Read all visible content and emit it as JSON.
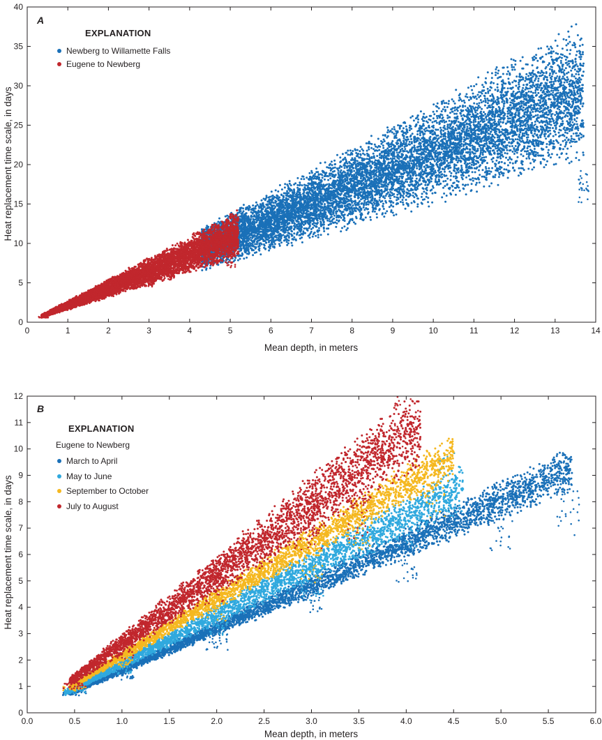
{
  "figure": {
    "panels": [
      "A",
      "B"
    ]
  },
  "chart_data": [
    {
      "type": "scatter",
      "panel_label": "A",
      "xlabel": "Mean depth, in meters",
      "ylabel": "Heat replacement time scale, in days",
      "xlim": [
        0,
        14
      ],
      "ylim": [
        0,
        40
      ],
      "xticks": [
        0,
        1,
        2,
        3,
        4,
        5,
        6,
        7,
        8,
        9,
        10,
        11,
        12,
        13,
        14
      ],
      "xtick_labels": [
        "0",
        "1",
        "2",
        "3",
        "4",
        "5",
        "6",
        "7",
        "8",
        "9",
        "10",
        "11",
        "12",
        "13",
        "14"
      ],
      "yticks": [
        0,
        5,
        10,
        15,
        20,
        25,
        30,
        35,
        40
      ],
      "ytick_labels": [
        "0",
        "5",
        "10",
        "15",
        "20",
        "25",
        "30",
        "35",
        "40"
      ],
      "grid": false,
      "legend": {
        "title": "EXPLANATION",
        "subtitle": "",
        "placement": "top-left",
        "entries": [
          {
            "name": "Newberg to Willamette Falls",
            "color": "#1a70b8"
          },
          {
            "name": "Eugene to Newberg",
            "color": "#c1272d"
          }
        ]
      },
      "series": [
        {
          "name": "Newberg to Willamette Falls",
          "color": "#1a70b8",
          "x_range": [
            4.3,
            13.7
          ],
          "lower_slope": 1.48,
          "upper_slope": 2.75,
          "sample_points": [
            [
              4.5,
              9.0
            ],
            [
              5.0,
              10.5
            ],
            [
              6.0,
              12.0
            ],
            [
              7.0,
              15.5
            ],
            [
              7.5,
              17.0
            ],
            [
              8.5,
              18.5
            ],
            [
              9.0,
              21.0
            ],
            [
              10.0,
              22.0
            ],
            [
              10.5,
              25.0
            ],
            [
              11.5,
              27.0
            ],
            [
              12.0,
              28.0
            ],
            [
              12.4,
              30.0
            ],
            [
              13.0,
              31.0
            ],
            [
              13.5,
              27.0
            ],
            [
              13.7,
              18.5
            ]
          ],
          "n_points": 9000
        },
        {
          "name": "Eugene to Newberg",
          "color": "#c1272d",
          "x_range": [
            0.35,
            5.2
          ],
          "lower_slope": 1.55,
          "upper_slope": 2.7,
          "sample_points": [
            [
              0.4,
              0.7
            ],
            [
              1.0,
              2.0
            ],
            [
              2.0,
              4.0
            ],
            [
              3.0,
              5.5
            ],
            [
              3.5,
              6.5
            ],
            [
              4.0,
              8.0
            ],
            [
              4.3,
              9.5
            ],
            [
              5.0,
              8.5
            ]
          ],
          "n_points": 7000
        }
      ]
    },
    {
      "type": "scatter",
      "panel_label": "B",
      "xlabel": "Mean depth, in meters",
      "ylabel": "Heat replacement time scale, in days",
      "xlim": [
        0,
        6
      ],
      "ylim": [
        0,
        12
      ],
      "xticks": [
        0,
        0.5,
        1,
        1.5,
        2,
        2.5,
        3,
        3.5,
        4,
        4.5,
        5,
        5.5,
        6
      ],
      "xtick_labels": [
        "0.0",
        "0.5",
        "1.0",
        "1.5",
        "2.0",
        "2.5",
        "3.0",
        "3.5",
        "4.0",
        "4.5",
        "5.0",
        "5.5",
        "6.0"
      ],
      "yticks": [
        0,
        1,
        2,
        3,
        4,
        5,
        6,
        7,
        8,
        9,
        10,
        11,
        12
      ],
      "ytick_labels": [
        "0",
        "1",
        "2",
        "3",
        "4",
        "5",
        "6",
        "7",
        "8",
        "9",
        "10",
        "11",
        "12"
      ],
      "grid": false,
      "legend": {
        "title": "EXPLANATION",
        "subtitle": "Eugene to Newberg",
        "placement": "top-left",
        "entries": [
          {
            "name": "March to April",
            "color": "#1a70b8"
          },
          {
            "name": "May to June",
            "color": "#30a9de"
          },
          {
            "name": "September to October",
            "color": "#f5b820"
          },
          {
            "name": "July to August",
            "color": "#c1272d"
          }
        ]
      },
      "series": [
        {
          "name": "March to April",
          "color": "#1a70b8",
          "x_range": [
            0.45,
            5.75
          ],
          "lower_slope": 1.45,
          "upper_slope": 1.75,
          "sample_points": [
            [
              0.5,
              0.8
            ],
            [
              1.0,
              1.5
            ],
            [
              2.0,
              2.9
            ],
            [
              3.0,
              4.5
            ],
            [
              4.0,
              6.0
            ],
            [
              5.0,
              7.5
            ],
            [
              5.7,
              8.2
            ]
          ],
          "n_points": 4000
        },
        {
          "name": "May to June",
          "color": "#30a9de",
          "x_range": [
            0.4,
            4.6
          ],
          "lower_slope": 1.65,
          "upper_slope": 2.05,
          "sample_points": [
            [
              0.5,
              0.9
            ],
            [
              1.0,
              1.8
            ],
            [
              2.0,
              3.6
            ],
            [
              3.0,
              5.2
            ],
            [
              4.0,
              7.5
            ],
            [
              4.4,
              9.5
            ]
          ],
          "n_points": 3000
        },
        {
          "name": "September to October",
          "color": "#f5b820",
          "x_range": [
            0.45,
            4.5
          ],
          "lower_slope": 1.95,
          "upper_slope": 2.35,
          "sample_points": [
            [
              0.5,
              1.0
            ],
            [
              1.0,
              2.1
            ],
            [
              2.0,
              4.2
            ],
            [
              3.0,
              6.0
            ],
            [
              3.5,
              7.0
            ],
            [
              4.3,
              9.0
            ]
          ],
          "n_points": 3000
        },
        {
          "name": "July to August",
          "color": "#c1272d",
          "x_range": [
            0.45,
            4.15
          ],
          "lower_slope": 2.2,
          "upper_slope": 3.0,
          "sample_points": [
            [
              0.5,
              1.1
            ],
            [
              1.0,
              2.5
            ],
            [
              2.0,
              5.0
            ],
            [
              3.0,
              7.5
            ],
            [
              3.5,
              8.0
            ],
            [
              4.0,
              11.8
            ]
          ],
          "n_points": 3500
        }
      ]
    }
  ]
}
